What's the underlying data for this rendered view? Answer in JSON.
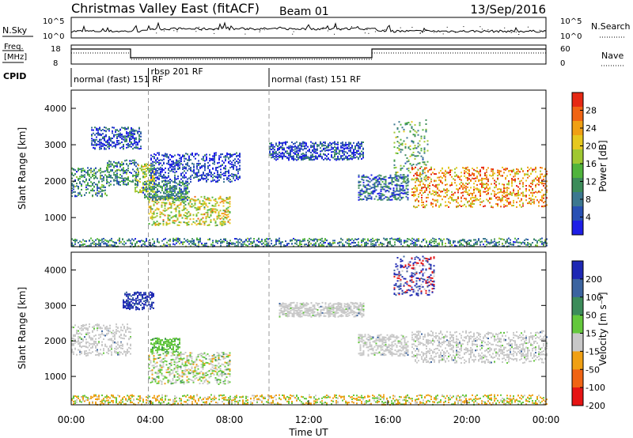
{
  "header": {
    "station": "Christmas Valley East (fitACF)",
    "beam": "Beam 01",
    "date": "13/Sep/2016"
  },
  "nsky_panel": {
    "left_label": "N.Sky",
    "right_label": "N.Search",
    "left_ticks": [
      "10^5",
      "10^0"
    ],
    "right_ticks": [
      "10^5",
      "10^0"
    ]
  },
  "freq_panel": {
    "left_label_line1": "Freq.",
    "left_label_line2": "[MHz]",
    "right_label": "Nave",
    "left_ticks": [
      "18",
      "8"
    ],
    "right_ticks": [
      "60",
      "0"
    ]
  },
  "cpid_panel": {
    "label": "CPID",
    "segments": [
      {
        "t_start": 0,
        "t_end": 3.9,
        "text": "normal (fast) 151 RF"
      },
      {
        "t_start": 3.9,
        "t_end": 10.0,
        "text": "rbsp 201 RF"
      },
      {
        "t_start": 10.0,
        "t_end": 24,
        "text": "normal (fast) 151 RF"
      }
    ]
  },
  "time_axis": {
    "label": "Time UT",
    "ticks": [
      "00:00",
      "04:00",
      "08:00",
      "12:00",
      "16:00",
      "20:00",
      "00:00"
    ],
    "tick_hours": [
      0,
      4,
      8,
      12,
      16,
      20,
      24
    ],
    "vline_hours": [
      3.9,
      10.0
    ]
  },
  "chart_data": [
    {
      "type": "heatmap",
      "ylabel": "Slant Range [km]",
      "ylim": [
        200,
        4500
      ],
      "yticks": [
        "1000",
        "2000",
        "3000",
        "4000"
      ],
      "colorbar": {
        "label": "Power [dB]",
        "ticks": [
          "4",
          "8",
          "12",
          "16",
          "20",
          "24",
          "28"
        ],
        "colors": [
          "#1e1ee6",
          "#2850b4",
          "#3c7890",
          "#3c8c5a",
          "#50b43c",
          "#a0c832",
          "#e6c81e",
          "#f0a014",
          "#f06414",
          "#e62814"
        ]
      },
      "regions": [
        {
          "t": [
            0.0,
            1.8
          ],
          "r": [
            1600,
            2400
          ],
          "level": 0.3
        },
        {
          "t": [
            1.8,
            3.4
          ],
          "r": [
            1900,
            2600
          ],
          "level": 0.3
        },
        {
          "t": [
            3.2,
            4.2
          ],
          "r": [
            1700,
            2500
          ],
          "level": 0.55
        },
        {
          "t": [
            3.9,
            8.0
          ],
          "r": [
            800,
            1600
          ],
          "level": 0.6
        },
        {
          "t": [
            3.6,
            6.0
          ],
          "r": [
            1500,
            2000
          ],
          "level": 0.3
        },
        {
          "t": [
            4.0,
            8.5
          ],
          "r": [
            2000,
            2800
          ],
          "level": 0.1
        },
        {
          "t": [
            1.0,
            3.5
          ],
          "r": [
            2900,
            3500
          ],
          "level": 0.15
        },
        {
          "t": [
            10.0,
            14.8
          ],
          "r": [
            2600,
            3100
          ],
          "level": 0.15
        },
        {
          "t": [
            14.5,
            17.0
          ],
          "r": [
            1500,
            2200
          ],
          "level": 0.2
        },
        {
          "t": [
            16.3,
            18.0
          ],
          "r": [
            2000,
            3700
          ],
          "level": 0.4
        },
        {
          "t": [
            17.2,
            24.0
          ],
          "r": [
            1300,
            2400
          ],
          "level": 0.75
        },
        {
          "t": [
            0.0,
            24.0
          ],
          "r": [
            200,
            450
          ],
          "level": 0.3
        }
      ]
    },
    {
      "type": "heatmap",
      "ylabel": "Slant Range [km]",
      "ylim": [
        200,
        4500
      ],
      "yticks": [
        "1000",
        "2000",
        "3000",
        "4000"
      ],
      "colorbar": {
        "label": "Velocity [m s^-1]",
        "ticks": [
          "200",
          "100",
          "50",
          "15",
          "-15",
          "-50",
          "-100",
          "-200"
        ],
        "colors": [
          "#1e28b4",
          "#3c64a0",
          "#3c8c5a",
          "#64c83c",
          "#c8c8c8",
          "#f0a014",
          "#f06414",
          "#e61414"
        ]
      },
      "regions": [
        {
          "t": [
            0.0,
            3.0
          ],
          "r": [
            1600,
            2500
          ],
          "vel": "grey"
        },
        {
          "t": [
            2.6,
            4.2
          ],
          "r": [
            2900,
            3400
          ],
          "vel": "blue"
        },
        {
          "t": [
            3.9,
            8.0
          ],
          "r": [
            800,
            1700
          ],
          "vel": "mixed"
        },
        {
          "t": [
            4.0,
            5.5
          ],
          "r": [
            1700,
            2100
          ],
          "vel": "green"
        },
        {
          "t": [
            10.5,
            14.8
          ],
          "r": [
            2700,
            3100
          ],
          "vel": "grey"
        },
        {
          "t": [
            14.5,
            17.0
          ],
          "r": [
            1600,
            2200
          ],
          "vel": "grey"
        },
        {
          "t": [
            16.3,
            18.3
          ],
          "r": [
            3300,
            4400
          ],
          "vel": "mixed-hi"
        },
        {
          "t": [
            17.2,
            24.0
          ],
          "r": [
            1400,
            2300
          ],
          "vel": "grey"
        },
        {
          "t": [
            0.0,
            24.0
          ],
          "r": [
            200,
            500
          ],
          "vel": "ground"
        }
      ]
    }
  ]
}
